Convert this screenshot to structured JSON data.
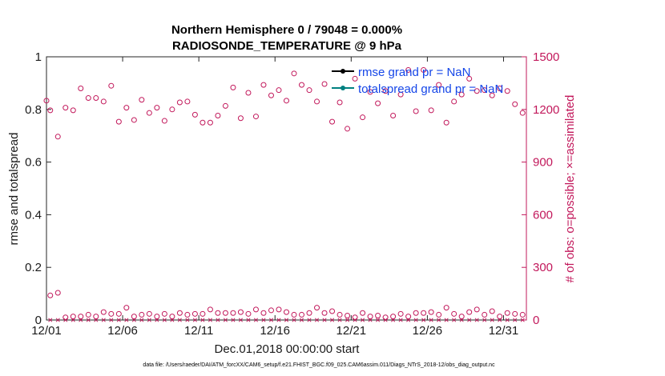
{
  "chart_data": {
    "type": "scatter",
    "title": "Northern Hemisphere 0 / 79048 = 0.000%",
    "subtitle": "RADIOSONDE_TEMPERATURE @ 9 hPa",
    "xlabel": "Dec.01,2018 00:00:00 start",
    "ylabel": "rmse and totalspread",
    "y2label": "# of obs: o=possible; ×=assimilated",
    "xlim": [
      0,
      31.5
    ],
    "ylim": [
      0,
      1
    ],
    "y2lim": [
      0,
      1500
    ],
    "x_ticks": [
      {
        "value": 0,
        "label": "12/01"
      },
      {
        "value": 5,
        "label": "12/06"
      },
      {
        "value": 10,
        "label": "12/11"
      },
      {
        "value": 15,
        "label": "12/16"
      },
      {
        "value": 20,
        "label": "12/21"
      },
      {
        "value": 25,
        "label": "12/26"
      },
      {
        "value": 30,
        "label": "12/31"
      }
    ],
    "y_ticks": [
      {
        "value": 0,
        "label": "0"
      },
      {
        "value": 0.2,
        "label": "0.2"
      },
      {
        "value": 0.4,
        "label": "0.4"
      },
      {
        "value": 0.6,
        "label": "0.6"
      },
      {
        "value": 0.8,
        "label": "0.8"
      },
      {
        "value": 1,
        "label": "1"
      }
    ],
    "y2_ticks": [
      {
        "value": 0,
        "label": "0"
      },
      {
        "value": 300,
        "label": "300"
      },
      {
        "value": 600,
        "label": "600"
      },
      {
        "value": 900,
        "label": "900"
      },
      {
        "value": 1200,
        "label": "1200"
      },
      {
        "value": 1500,
        "label": "1500"
      }
    ],
    "legend": [
      {
        "label": "rmse grand pr = NaN",
        "color": "#000000"
      },
      {
        "label": "totalspread grand pr = NaN",
        "color": "#008080"
      }
    ],
    "legend_position": "top-right",
    "series": [
      {
        "name": "possible (high counts)",
        "marker": "circle",
        "color": "#c2185b",
        "x": [
          0,
          0.25,
          0.75,
          1.25,
          1.75,
          2.25,
          2.75,
          3.25,
          3.75,
          4.25,
          4.75,
          5.25,
          5.75,
          6.25,
          6.75,
          7.25,
          7.75,
          8.25,
          8.75,
          9.25,
          9.75,
          10.25,
          10.75,
          11.25,
          11.75,
          12.25,
          12.75,
          13.25,
          13.75,
          14.25,
          14.75,
          15.25,
          15.75,
          16.25,
          16.75,
          17.25,
          17.75,
          18.25,
          18.75,
          19.25,
          19.75,
          20.25,
          20.75,
          21.25,
          21.75,
          22.25,
          22.75,
          23.25,
          23.75,
          24.25,
          24.75,
          25.25,
          25.75,
          26.25,
          26.75,
          27.25,
          27.75,
          28.25,
          28.75,
          29.25,
          29.75,
          30.25,
          30.75,
          31.25
        ],
        "y": [
          1250,
          1195,
          1045,
          1210,
          1195,
          1320,
          1265,
          1265,
          1245,
          1335,
          1130,
          1210,
          1140,
          1255,
          1180,
          1210,
          1135,
          1200,
          1240,
          1245,
          1170,
          1125,
          1125,
          1165,
          1220,
          1325,
          1150,
          1295,
          1160,
          1340,
          1280,
          1310,
          1250,
          1405,
          1340,
          1310,
          1245,
          1345,
          1130,
          1240,
          1090,
          1375,
          1155,
          1300,
          1235,
          1305,
          1165,
          1285,
          1425,
          1190,
          1425,
          1195,
          1340,
          1125,
          1245,
          1285,
          1375,
          1305,
          1310,
          1280,
          1320,
          1305,
          1230,
          1180
        ]
      },
      {
        "name": "possible (low counts)",
        "marker": "circle",
        "color": "#c2185b",
        "x": [
          0.25,
          0.75,
          1.25,
          1.75,
          2.25,
          2.75,
          3.25,
          3.75,
          4.25,
          4.75,
          5.25,
          5.75,
          6.25,
          6.75,
          7.25,
          7.75,
          8.25,
          8.75,
          9.25,
          9.75,
          10.25,
          10.75,
          11.25,
          11.75,
          12.25,
          12.75,
          13.25,
          13.75,
          14.25,
          14.75,
          15.25,
          15.75,
          16.25,
          16.75,
          17.25,
          17.75,
          18.25,
          18.75,
          19.25,
          19.75,
          20.25,
          20.75,
          21.25,
          21.75,
          22.25,
          22.75,
          23.25,
          23.75,
          24.25,
          24.75,
          25.25,
          25.75,
          26.25,
          26.75,
          27.25,
          27.75,
          28.25,
          28.75,
          29.25,
          29.75,
          30.25,
          30.75,
          31.25
        ],
        "y": [
          140,
          155,
          15,
          20,
          20,
          30,
          20,
          45,
          35,
          35,
          70,
          20,
          30,
          35,
          20,
          35,
          20,
          40,
          30,
          35,
          35,
          60,
          40,
          40,
          40,
          45,
          35,
          60,
          40,
          55,
          60,
          45,
          30,
          30,
          40,
          70,
          40,
          50,
          30,
          25,
          15,
          40,
          20,
          25,
          15,
          20,
          35,
          20,
          40,
          40,
          45,
          30,
          70,
          35,
          20,
          45,
          60,
          30,
          50,
          20,
          40,
          35,
          30
        ]
      },
      {
        "name": "assimilated",
        "marker": "x",
        "color": "#c2185b",
        "x": [
          0.25,
          0.75,
          1.25,
          1.75,
          2.25,
          2.75,
          3.25,
          3.75,
          4.25,
          4.75,
          5.25,
          5.75,
          6.25,
          6.75,
          7.25,
          7.75,
          8.25,
          8.75,
          9.25,
          9.75,
          10.25,
          10.75,
          11.25,
          11.75,
          12.25,
          12.75,
          13.25,
          13.75,
          14.25,
          14.75,
          15.25,
          15.75,
          16.25,
          16.75,
          17.25,
          17.75,
          18.25,
          18.75,
          19.25,
          19.75,
          20.25,
          20.75,
          21.25,
          21.75,
          22.25,
          22.75,
          23.25,
          23.75,
          24.25,
          24.75,
          25.25,
          25.75,
          26.25,
          26.75,
          27.25,
          27.75,
          28.25,
          28.75,
          29.25,
          29.75,
          30.25,
          30.75,
          31.25
        ],
        "y": [
          0,
          0,
          0,
          0,
          0,
          0,
          0,
          0,
          0,
          0,
          0,
          0,
          0,
          0,
          0,
          0,
          0,
          0,
          0,
          0,
          0,
          0,
          0,
          0,
          0,
          0,
          0,
          0,
          0,
          0,
          0,
          0,
          0,
          0,
          0,
          0,
          0,
          0,
          0,
          0,
          0,
          0,
          0,
          0,
          0,
          0,
          0,
          0,
          0,
          0,
          0,
          0,
          0,
          0,
          0,
          0,
          0,
          0,
          0,
          0,
          0,
          0,
          0
        ]
      }
    ],
    "footnote": "data file: /Users/raeder/DAI/ATM_forcXX/CAM6_setup/f.e21.FHIST_BGC.f09_025.CAM6assim.011/Diags_NTrS_2018-12/obs_diag_output.nc"
  },
  "colors": {
    "right_axis": "#c2185b",
    "legend_text": "#1546e8",
    "rmse": "#000000",
    "totalspread": "#008080"
  }
}
